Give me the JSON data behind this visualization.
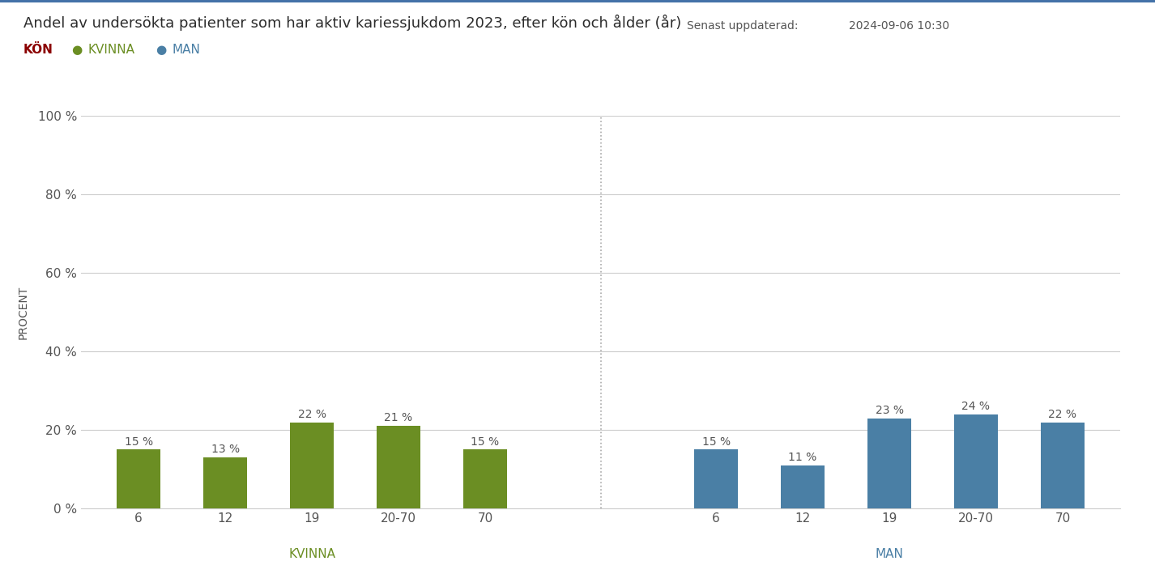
{
  "title": "Andel av undersökta patienter som har aktiv kariessjukdom 2023, efter kön och ålder (år)",
  "kon_label": "KÖN",
  "legend_items": [
    "KVINNA",
    "MAN"
  ],
  "legend_colors": [
    "#6b8e23",
    "#4a7fa5"
  ],
  "update_label": "Senast uppdaterad:",
  "update_date": "2024-09-06 10:30",
  "ylabel": "PROCENT",
  "yticks": [
    0,
    20,
    40,
    60,
    80,
    100
  ],
  "ytick_labels": [
    "0 %",
    "20 %",
    "40 %",
    "60 %",
    "80 %",
    "100 %"
  ],
  "kvinna_categories": [
    "6",
    "12",
    "19",
    "20-70",
    "70"
  ],
  "man_categories": [
    "6",
    "12",
    "19",
    "20-70",
    "70"
  ],
  "kvinna_values": [
    15,
    13,
    22,
    21,
    15
  ],
  "man_values": [
    15,
    11,
    23,
    24,
    22
  ],
  "kvinna_color": "#6b8e23",
  "man_color": "#4a7fa5",
  "group_label_kvinna": "KVINNA",
  "group_label_man": "MAN",
  "background_color": "#ffffff",
  "grid_color": "#cccccc",
  "title_color": "#2c2c2c",
  "bar_label_color": "#555555",
  "axis_text_color": "#555555",
  "top_line_color": "#4472a8",
  "divider_color": "#aaaaaa",
  "kon_color": "#8b0000",
  "ylim": [
    0,
    100
  ]
}
